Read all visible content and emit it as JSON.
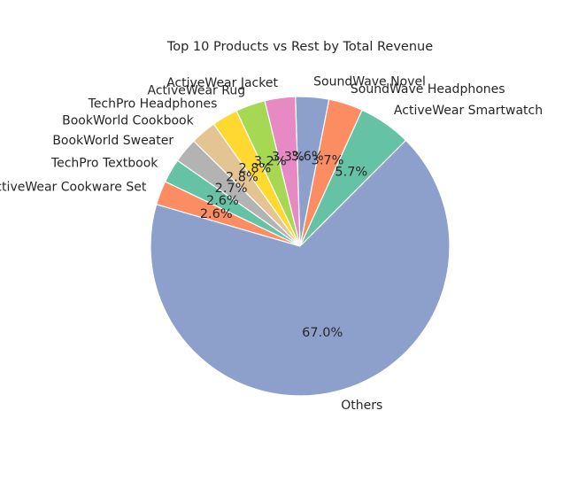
{
  "chart_data": {
    "type": "pie",
    "title": "Top 10 Products vs Rest by Total Revenue",
    "slices": [
      {
        "label": "ActiveWear Smartwatch",
        "value": 5.7,
        "pct_label": "5.7%",
        "color": "#66c2a5"
      },
      {
        "label": "SoundWave Headphones",
        "value": 3.7,
        "pct_label": "3.7%",
        "color": "#fc8d62"
      },
      {
        "label": "SoundWave Novel",
        "value": 3.6,
        "pct_label": "3.6%",
        "color": "#8da0cb"
      },
      {
        "label": "ActiveWear Jacket",
        "value": 3.3,
        "pct_label": "3.3%",
        "color": "#e78ac3"
      },
      {
        "label": "ActiveWear Rug",
        "value": 3.2,
        "pct_label": "3.2%",
        "color": "#a6d854"
      },
      {
        "label": "TechPro Headphones",
        "value": 2.8,
        "pct_label": "2.8%",
        "color": "#ffd92f"
      },
      {
        "label": "BookWorld Cookbook",
        "value": 2.8,
        "pct_label": "2.8%",
        "color": "#e5c494"
      },
      {
        "label": "BookWorld Sweater",
        "value": 2.7,
        "pct_label": "2.7%",
        "color": "#b3b3b3"
      },
      {
        "label": "TechPro Textbook",
        "value": 2.6,
        "pct_label": "2.6%",
        "color": "#66c2a5"
      },
      {
        "label": "ActiveWear Cookware Set",
        "value": 2.6,
        "pct_label": "2.6%",
        "color": "#fc8d62"
      },
      {
        "label": "Others",
        "value": 67.0,
        "pct_label": "67.0%",
        "color": "#8da0cb"
      }
    ],
    "start_angle_deg": 45,
    "direction": "counterclockwise",
    "legend": "none"
  }
}
